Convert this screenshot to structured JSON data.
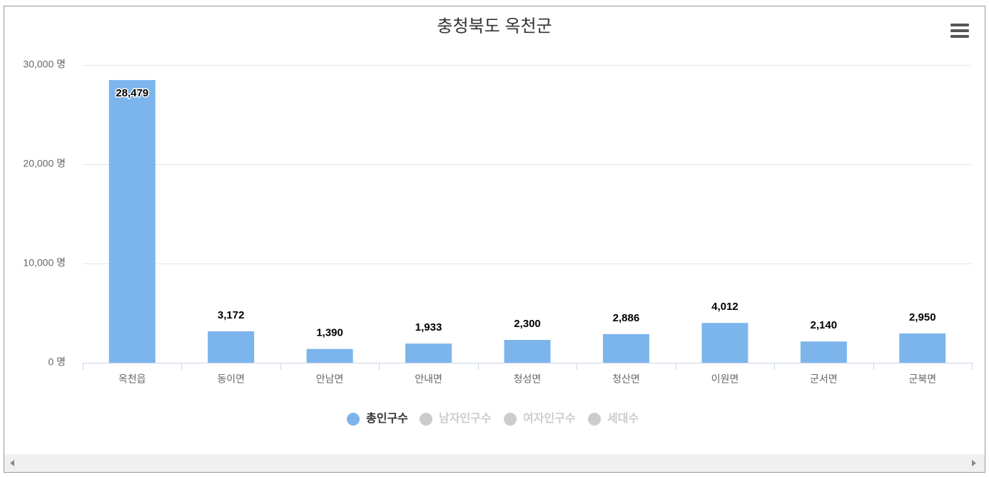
{
  "chart_data": {
    "type": "bar",
    "title": "충청북도 옥천군",
    "categories": [
      "옥천읍",
      "동이면",
      "안남면",
      "안내면",
      "청성면",
      "청산면",
      "이원면",
      "군서면",
      "군북면"
    ],
    "series": [
      {
        "name": "총인구수",
        "color": "#7cb5ec",
        "visible": true,
        "values": [
          28479,
          3172,
          1390,
          1933,
          2300,
          2886,
          4012,
          2140,
          2950
        ],
        "value_labels": [
          "28,479",
          "3,172",
          "1,390",
          "1,933",
          "2,300",
          "2,886",
          "4,012",
          "2,140",
          "2,950"
        ]
      },
      {
        "name": "남자인구수",
        "color": "#cccccc",
        "visible": false
      },
      {
        "name": "여자인구수",
        "color": "#cccccc",
        "visible": false
      },
      {
        "name": "세대수",
        "color": "#cccccc",
        "visible": false
      }
    ],
    "ylim": [
      0,
      30000
    ],
    "yticks": [
      {
        "value": 0,
        "label": "0 명"
      },
      {
        "value": 10000,
        "label": "10,000 명"
      },
      {
        "value": 20000,
        "label": "20,000 명"
      },
      {
        "value": 30000,
        "label": "30,000 명"
      }
    ],
    "grid": true,
    "legend": "bottom"
  }
}
